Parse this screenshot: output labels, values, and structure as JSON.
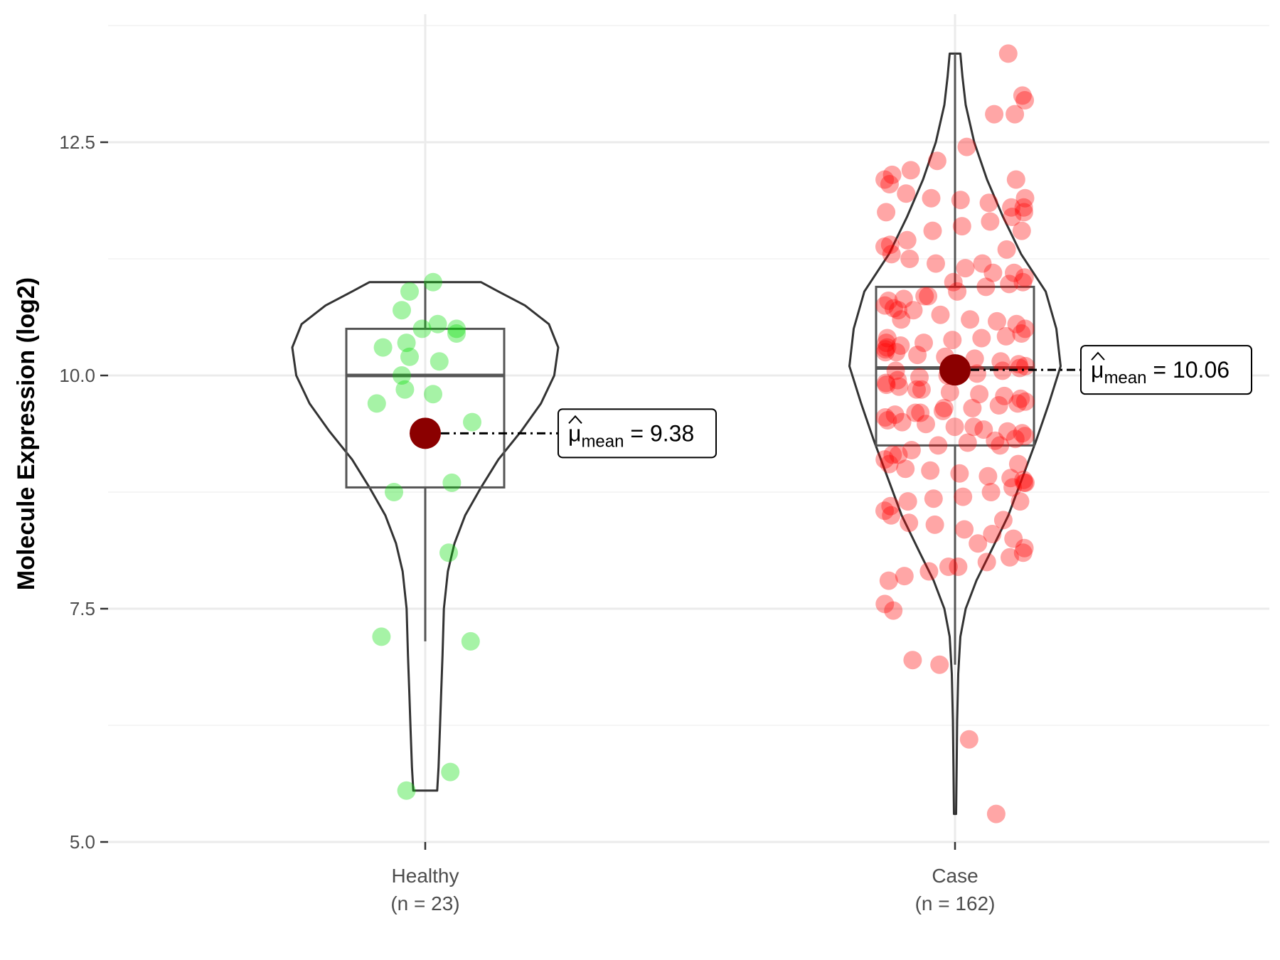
{
  "chart_data": {
    "type": "violin",
    "title": "",
    "xlabel": "",
    "ylabel": "Molecule Expression (log2)",
    "ylim": [
      4.9,
      13.7
    ],
    "yticks": [
      5.0,
      7.5,
      10.0,
      12.5
    ],
    "yticks_labels": [
      "5.0",
      "7.5",
      "10.0",
      "12.5"
    ],
    "grid": true,
    "legend": "none",
    "groups": [
      {
        "label": "Healthy",
        "n_label": "(n = 23)",
        "color": "#00dd00",
        "median": 10.0,
        "q1": 8.8,
        "q3": 10.5,
        "whisker_low": 7.15,
        "whisker_high": 11.0,
        "min": 5.55,
        "max": 11.0,
        "mean": 9.38,
        "mean_label": "9.38",
        "violin": [
          [
            5.55,
            0.09
          ],
          [
            5.8,
            0.1
          ],
          [
            6.2,
            0.11
          ],
          [
            6.6,
            0.12
          ],
          [
            7.0,
            0.13
          ],
          [
            7.5,
            0.14
          ],
          [
            7.9,
            0.17
          ],
          [
            8.2,
            0.22
          ],
          [
            8.5,
            0.3
          ],
          [
            8.8,
            0.42
          ],
          [
            9.1,
            0.55
          ],
          [
            9.4,
            0.72
          ],
          [
            9.7,
            0.87
          ],
          [
            10.0,
            0.97
          ],
          [
            10.3,
            1.0
          ],
          [
            10.55,
            0.93
          ],
          [
            10.75,
            0.75
          ],
          [
            10.9,
            0.55
          ],
          [
            11.0,
            0.42
          ]
        ],
        "points": [
          11.0,
          10.9,
          10.7,
          10.55,
          10.5,
          10.5,
          10.45,
          10.35,
          10.3,
          10.2,
          10.15,
          10.0,
          9.85,
          9.8,
          9.7,
          9.5,
          9.38,
          8.85,
          8.75,
          8.1,
          7.2,
          7.15,
          5.75,
          5.55
        ],
        "jitter": [
          0.05,
          -0.1,
          -0.15,
          0.08,
          -0.02,
          0.2,
          0.2,
          -0.12,
          -0.27,
          -0.1,
          0.09,
          -0.15,
          -0.13,
          0.05,
          -0.31,
          0.3,
          0.0,
          0.17,
          -0.2,
          0.15,
          -0.28,
          0.29,
          0.16,
          -0.12
        ]
      },
      {
        "label": "Case",
        "n_label": "(n = 162)",
        "color": "#ff0000",
        "median": 10.08,
        "q1": 9.25,
        "q3": 10.95,
        "whisker_low": 6.9,
        "whisker_high": 13.45,
        "min": 5.3,
        "max": 13.45,
        "mean": 10.06,
        "mean_label": "10.06",
        "violin": [
          [
            5.3,
            0.01
          ],
          [
            5.8,
            0.015
          ],
          [
            6.3,
            0.02
          ],
          [
            6.8,
            0.03
          ],
          [
            7.2,
            0.05
          ],
          [
            7.5,
            0.1
          ],
          [
            7.8,
            0.2
          ],
          [
            8.1,
            0.33
          ],
          [
            8.5,
            0.5
          ],
          [
            8.9,
            0.63
          ],
          [
            9.3,
            0.76
          ],
          [
            9.7,
            0.88
          ],
          [
            10.1,
            0.99
          ],
          [
            10.5,
            0.95
          ],
          [
            10.9,
            0.85
          ],
          [
            11.3,
            0.62
          ],
          [
            11.7,
            0.45
          ],
          [
            12.1,
            0.3
          ],
          [
            12.5,
            0.18
          ],
          [
            12.9,
            0.1
          ],
          [
            13.2,
            0.07
          ],
          [
            13.45,
            0.05
          ]
        ],
        "points": [
          13.45,
          13.0,
          12.95,
          12.8,
          12.8,
          12.45,
          12.3,
          12.2,
          12.15,
          12.1,
          12.05,
          11.95,
          11.9,
          11.88,
          11.85,
          11.8,
          11.8,
          11.75,
          11.7,
          11.65,
          11.6,
          11.55,
          11.45,
          11.4,
          11.38,
          11.3,
          11.25,
          11.2,
          11.15,
          11.1,
          11.1,
          11.05,
          11.0,
          10.98,
          10.95,
          10.9,
          10.85,
          10.82,
          10.8,
          10.75,
          10.72,
          10.7,
          10.65,
          10.6,
          10.58,
          10.55,
          10.5,
          10.45,
          10.42,
          10.4,
          10.38,
          10.35,
          10.32,
          10.3,
          10.28,
          10.25,
          10.22,
          10.2,
          10.18,
          10.15,
          10.12,
          10.1,
          10.08,
          10.05,
          10.02,
          10.0,
          9.98,
          9.95,
          9.92,
          9.9,
          9.88,
          9.85,
          9.82,
          9.8,
          9.78,
          9.75,
          9.72,
          9.7,
          9.68,
          9.65,
          9.62,
          9.6,
          9.58,
          9.55,
          9.52,
          9.5,
          9.48,
          9.45,
          9.42,
          9.4,
          9.38,
          9.35,
          9.32,
          9.3,
          9.28,
          9.25,
          9.2,
          9.15,
          9.1,
          9.05,
          9.0,
          8.98,
          8.95,
          8.92,
          8.9,
          8.88,
          8.85,
          8.8,
          8.75,
          8.7,
          8.68,
          8.65,
          8.6,
          8.55,
          8.5,
          8.42,
          8.4,
          8.35,
          8.3,
          8.25,
          8.15,
          8.1,
          8.05,
          8.0,
          7.95,
          7.9,
          7.85,
          7.8,
          7.55,
          7.48,
          6.95,
          6.9,
          6.1,
          5.3,
          12.1,
          11.9,
          11.55,
          11.35,
          11.2,
          11.0,
          10.85,
          10.6,
          10.4,
          10.25,
          10.05,
          9.85,
          9.65,
          9.45,
          9.25,
          9.05,
          8.85,
          8.65,
          8.45,
          8.2,
          7.95,
          9.6,
          10.7,
          11.75,
          10.35,
          9.15
        ]
      }
    ]
  }
}
